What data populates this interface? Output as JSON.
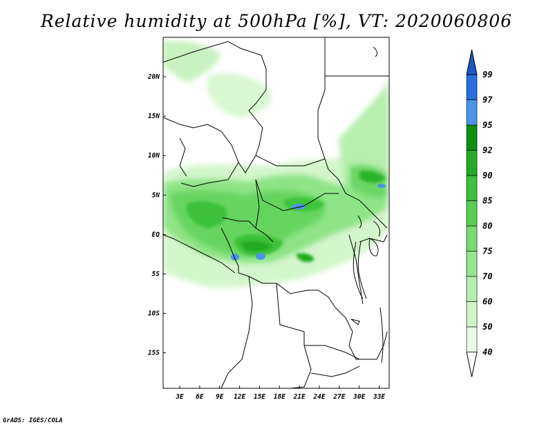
{
  "title": "Relative humidity at 500hPa [%], VT: 2020060806",
  "credit": "GrADS: IGES/COLA",
  "map": {
    "variable": "Relative humidity",
    "level": "500hPa",
    "units": "%",
    "valid_time": "2020060806",
    "lon_range": [
      0.5,
      34.5
    ],
    "lat_range": [
      -19.5,
      25
    ],
    "lon_ticks": [
      {
        "value": 3,
        "label": "3E"
      },
      {
        "value": 6,
        "label": "6E"
      },
      {
        "value": 9,
        "label": "9E"
      },
      {
        "value": 12,
        "label": "12E"
      },
      {
        "value": 15,
        "label": "15E"
      },
      {
        "value": 18,
        "label": "18E"
      },
      {
        "value": 21,
        "label": "21E"
      },
      {
        "value": 24,
        "label": "24E"
      },
      {
        "value": 27,
        "label": "27E"
      },
      {
        "value": 30,
        "label": "30E"
      },
      {
        "value": 33,
        "label": "33E"
      }
    ],
    "lat_ticks": [
      {
        "value": 20,
        "label": "20N"
      },
      {
        "value": 15,
        "label": "15N"
      },
      {
        "value": 10,
        "label": "10N"
      },
      {
        "value": 5,
        "label": "5N"
      },
      {
        "value": 0,
        "label": "EQ"
      },
      {
        "value": -5,
        "label": "5S"
      },
      {
        "value": -10,
        "label": "10S"
      },
      {
        "value": -15,
        "label": "15S"
      }
    ]
  },
  "colorbar": {
    "levels": [
      "40",
      "50",
      "60",
      "70",
      "75",
      "80",
      "85",
      "90",
      "92",
      "95",
      "97",
      "99"
    ],
    "colors": [
      "#ffffff",
      "#e8fbe4",
      "#d0f5c8",
      "#b5efad",
      "#96e58f",
      "#78db72",
      "#57cf52",
      "#3cc13a",
      "#24ab24",
      "#0f8f12",
      "#4a94ec",
      "#2a70dc",
      "#1a58c4"
    ],
    "arrows": "both-ends"
  }
}
